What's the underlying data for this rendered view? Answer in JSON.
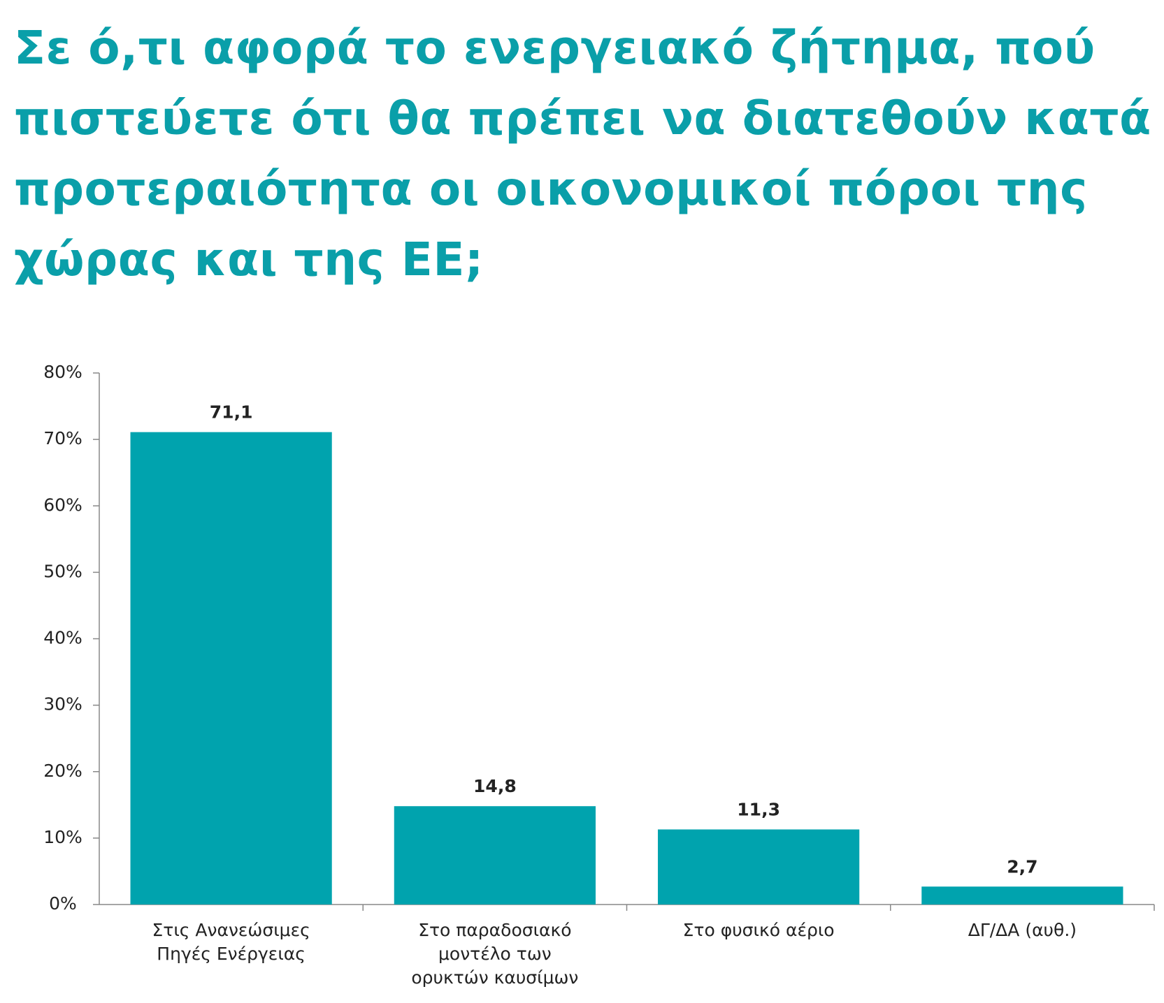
{
  "chart_data": {
    "type": "bar",
    "title": "Σε ό,τι αφορά το ενεργειακό ζήτημα, πού\nπιστεύετε ότι θα πρέπει να διατεθούν κατά\nπροτεραιότητα οι οικονομικοί πόροι της\nχώρας και της ΕΕ;",
    "title_color": "#0a9fa9",
    "categories": [
      "Στις Ανανεώσιμες\nΠηγές Ενέργειας",
      "Στο παραδοσιακό\nμοντέλο των\nορυκτών καυσίμων",
      "Στο φυσικό αέριο",
      "ΔΓ/ΔΑ (αυθ.)"
    ],
    "values": [
      71.1,
      14.8,
      11.3,
      2.7
    ],
    "value_labels": [
      "71,1",
      "14,8",
      "11,3",
      "2,7"
    ],
    "color": "#00a3ae",
    "ylim": [
      0,
      80
    ],
    "yticks": [
      {
        "value": 0,
        "label": "0%"
      },
      {
        "value": 10,
        "label": "10%"
      },
      {
        "value": 20,
        "label": "20%"
      },
      {
        "value": 30,
        "label": "30%"
      },
      {
        "value": 40,
        "label": "40%"
      },
      {
        "value": 50,
        "label": "50%"
      },
      {
        "value": 60,
        "label": "60%"
      },
      {
        "value": 70,
        "label": "70%"
      },
      {
        "value": 80,
        "label": "80%"
      }
    ],
    "grid": false
  }
}
